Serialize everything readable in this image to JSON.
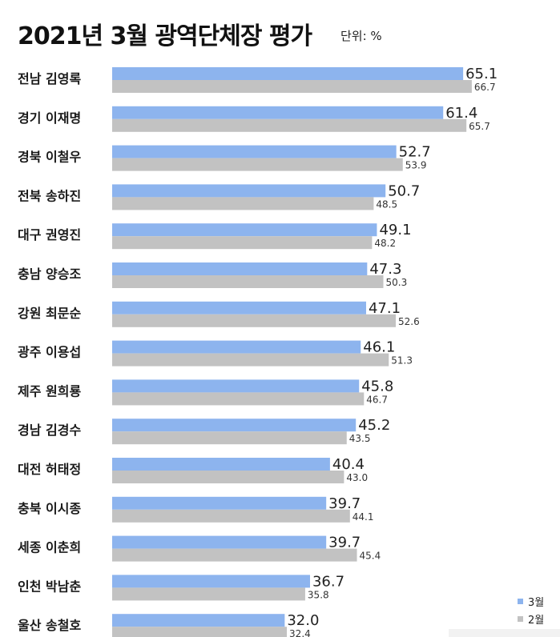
{
  "title": "2021년 3월 광역단체장 평가",
  "unit_label": "단위: %",
  "colors": {
    "march": "#8db4ee",
    "february": "#c2c2c2"
  },
  "legend": [
    {
      "label": "3월",
      "color": "#8db4ee"
    },
    {
      "label": "2월",
      "color": "#c2c2c2"
    }
  ],
  "chart_data": {
    "type": "bar",
    "orientation": "horizontal",
    "categories": [
      "전남 김영록",
      "경기 이재명",
      "경북 이철우",
      "전북 송하진",
      "대구 권영진",
      "충남 양승조",
      "강원 최문순",
      "광주 이용섭",
      "제주 원희룡",
      "경남 김경수",
      "대전 허태정",
      "충북 이시종",
      "세종 이춘희",
      "인천 박남춘",
      "울산 송철호"
    ],
    "series": [
      {
        "name": "3월",
        "values": [
          65.1,
          61.4,
          52.7,
          50.7,
          49.1,
          47.3,
          47.1,
          46.1,
          45.8,
          45.2,
          40.4,
          39.7,
          39.7,
          36.7,
          32.0
        ]
      },
      {
        "name": "2월",
        "values": [
          66.7,
          65.7,
          53.9,
          48.5,
          48.2,
          50.3,
          52.6,
          51.3,
          46.7,
          43.5,
          43.0,
          44.1,
          45.4,
          35.8,
          32.4
        ]
      }
    ],
    "title": "2021년 3월 광역단체장 평가",
    "xlabel": "",
    "ylabel": "",
    "xlim": [
      0,
      100
    ],
    "grid": false,
    "data_labels": true,
    "legend_position": "bottom-right"
  }
}
